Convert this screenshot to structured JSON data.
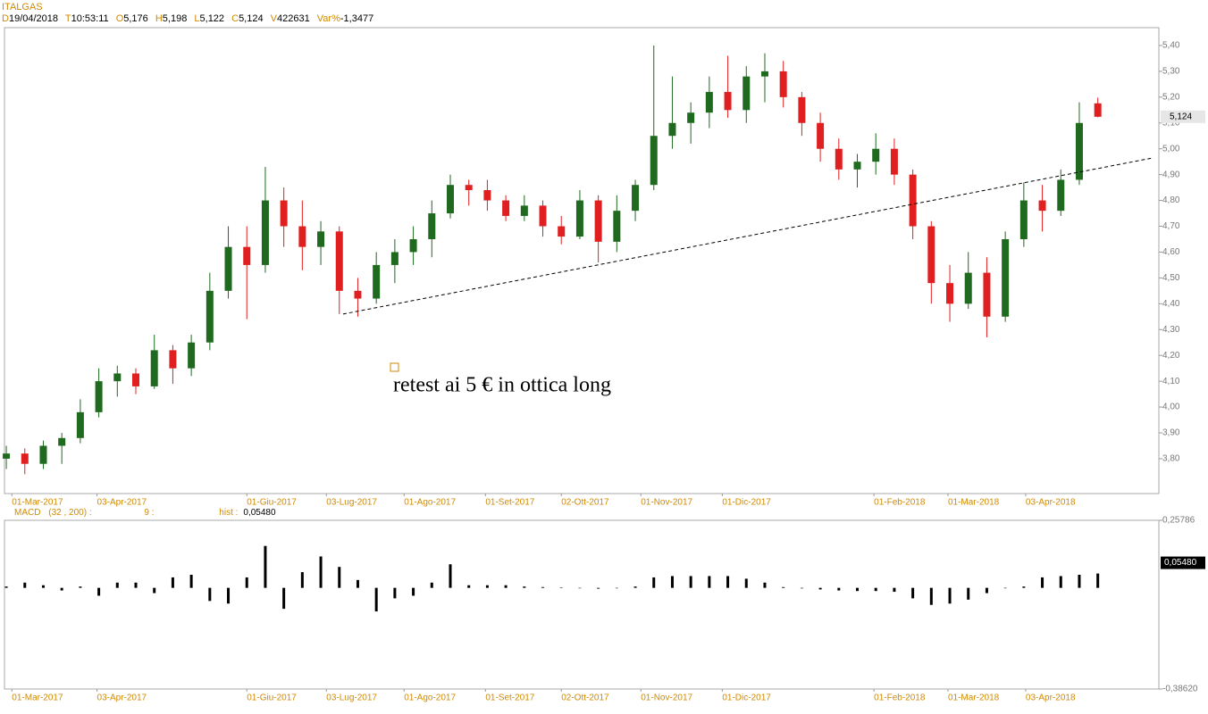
{
  "header": {
    "instrument": "ITALGAS",
    "quote": [
      {
        "key": "D",
        "value": "19/04/2018"
      },
      {
        "key": "T",
        "value": "10:53:11"
      },
      {
        "key": "O",
        "value": "5,176"
      },
      {
        "key": "H",
        "value": "5,198"
      },
      {
        "key": "L",
        "value": "5,122"
      },
      {
        "key": "C",
        "value": "5,124"
      },
      {
        "key": "V",
        "value": "422631"
      },
      {
        "key": "Var%",
        "value": "-1,3477"
      }
    ]
  },
  "chart_data": [
    {
      "type": "candlestick",
      "annotation": "retest ai 5 € in ottica long",
      "up_color": "#1f6a1f",
      "down_color": "#e02020",
      "open": [
        3.8,
        3.82,
        3.78,
        3.85,
        3.88,
        3.98,
        4.1,
        4.13,
        4.08,
        4.22,
        4.15,
        4.25,
        4.45,
        4.62,
        4.55,
        4.8,
        4.7,
        4.62,
        4.68,
        4.45,
        4.42,
        4.55,
        4.6,
        4.65,
        4.75,
        4.86,
        4.84,
        4.8,
        4.74,
        4.78,
        4.7,
        4.66,
        4.8,
        4.64,
        4.76,
        4.86,
        5.05,
        5.1,
        5.14,
        5.22,
        5.15,
        5.28,
        5.3,
        5.2,
        5.1,
        5.0,
        4.92,
        4.95,
        5.0,
        4.9,
        4.7,
        4.48,
        4.4,
        4.52,
        4.35,
        4.65,
        4.8,
        4.76,
        4.88,
        5.176
      ],
      "high": [
        3.85,
        3.84,
        3.87,
        3.9,
        4.03,
        4.15,
        4.16,
        4.15,
        4.28,
        4.24,
        4.28,
        4.52,
        4.7,
        4.7,
        4.93,
        4.85,
        4.8,
        4.72,
        4.7,
        4.5,
        4.6,
        4.65,
        4.7,
        4.8,
        4.9,
        4.88,
        4.88,
        4.82,
        4.82,
        4.8,
        4.74,
        4.84,
        4.82,
        4.82,
        4.88,
        5.4,
        5.28,
        5.18,
        5.28,
        5.36,
        5.32,
        5.37,
        5.34,
        5.22,
        5.14,
        5.04,
        4.98,
        5.06,
        5.04,
        4.92,
        4.72,
        4.55,
        4.6,
        4.58,
        4.68,
        4.87,
        4.86,
        4.92,
        5.18,
        5.198
      ],
      "low": [
        3.76,
        3.74,
        3.76,
        3.78,
        3.86,
        3.96,
        4.04,
        4.05,
        4.07,
        4.09,
        4.12,
        4.22,
        4.42,
        4.34,
        4.52,
        4.62,
        4.53,
        4.55,
        4.36,
        4.35,
        4.4,
        4.48,
        4.55,
        4.58,
        4.73,
        4.78,
        4.76,
        4.72,
        4.72,
        4.66,
        4.63,
        4.65,
        4.56,
        4.6,
        4.72,
        4.84,
        5.0,
        5.02,
        5.08,
        5.12,
        5.1,
        5.18,
        5.16,
        5.05,
        4.95,
        4.88,
        4.85,
        4.9,
        4.86,
        4.65,
        4.4,
        4.33,
        4.38,
        4.27,
        4.33,
        4.62,
        4.68,
        4.74,
        4.86,
        5.122
      ],
      "close": [
        3.82,
        3.78,
        3.85,
        3.88,
        3.98,
        4.1,
        4.13,
        4.08,
        4.22,
        4.15,
        4.25,
        4.45,
        4.62,
        4.55,
        4.8,
        4.7,
        4.62,
        4.68,
        4.45,
        4.42,
        4.55,
        4.6,
        4.65,
        4.75,
        4.86,
        4.84,
        4.8,
        4.74,
        4.78,
        4.7,
        4.66,
        4.8,
        4.64,
        4.76,
        4.86,
        5.05,
        5.1,
        5.14,
        5.22,
        5.15,
        5.28,
        5.3,
        5.2,
        5.1,
        5.0,
        4.92,
        4.95,
        5.0,
        4.9,
        4.7,
        4.48,
        4.4,
        4.52,
        4.35,
        4.65,
        4.8,
        4.76,
        4.88,
        5.1,
        5.124
      ],
      "xlim": [
        -0.1,
        62.3
      ],
      "ylim": [
        3.665,
        5.469
      ],
      "yticks": [
        {
          "value": 3.8,
          "label": "3,80"
        },
        {
          "value": 3.9,
          "label": "3,90"
        },
        {
          "value": 4.0,
          "label": "4,00"
        },
        {
          "value": 4.1,
          "label": "4,10"
        },
        {
          "value": 4.2,
          "label": "4,20"
        },
        {
          "value": 4.3,
          "label": "4,30"
        },
        {
          "value": 4.4,
          "label": "4,40"
        },
        {
          "value": 4.5,
          "label": "4,50"
        },
        {
          "value": 4.6,
          "label": "4,60"
        },
        {
          "value": 4.7,
          "label": "4,70"
        },
        {
          "value": 4.8,
          "label": "4,80"
        },
        {
          "value": 4.9,
          "label": "4,90"
        },
        {
          "value": 5.0,
          "label": "5,00"
        },
        {
          "value": 5.1,
          "label": "5,10"
        },
        {
          "value": 5.2,
          "label": "5,20"
        },
        {
          "value": 5.3,
          "label": "5,30"
        },
        {
          "value": 5.4,
          "label": "5,40"
        }
      ],
      "xticks": [
        {
          "value": 0.3,
          "label": "01-Mar-2017"
        },
        {
          "value": 4.9,
          "label": "03-Apr-2017"
        },
        {
          "value": 13.0,
          "label": "01-Giu-2017"
        },
        {
          "value": 17.3,
          "label": "03-Lug-2017"
        },
        {
          "value": 21.5,
          "label": "01-Ago-2017"
        },
        {
          "value": 25.9,
          "label": "01-Set-2017"
        },
        {
          "value": 30.0,
          "label": "02-Ott-2017"
        },
        {
          "value": 34.3,
          "label": "01-Nov-2017"
        },
        {
          "value": 38.7,
          "label": "01-Dic-2017"
        },
        {
          "value": 46.9,
          "label": "01-Feb-2018"
        },
        {
          "value": 50.9,
          "label": "01-Mar-2018"
        },
        {
          "value": 55.1,
          "label": "03-Apr-2018"
        }
      ],
      "trendline": {
        "x": [
          18.2,
          62.0
        ],
        "y": [
          4.36,
          4.965
        ]
      },
      "last_label": {
        "value": 5.124,
        "label": "5,124"
      }
    },
    {
      "type": "bar",
      "title": "MACD",
      "params": "(32 , 200) :",
      "signal": "9 :",
      "hist_key": "hist :",
      "color": "#000000",
      "values": [
        0.005,
        0.02,
        0.01,
        -0.01,
        0.005,
        -0.03,
        0.02,
        0.02,
        -0.02,
        0.04,
        0.05,
        -0.05,
        -0.06,
        0.04,
        0.16,
        -0.08,
        0.06,
        0.12,
        0.08,
        0.03,
        -0.09,
        -0.04,
        -0.03,
        0.02,
        0.09,
        0.01,
        0.01,
        0.01,
        0.005,
        0.003,
        0.001,
        0.0,
        -0.003,
        0.0,
        0.005,
        0.04,
        0.045,
        0.045,
        0.045,
        0.045,
        0.035,
        0.02,
        0.003,
        -0.002,
        -0.006,
        -0.01,
        -0.012,
        -0.012,
        -0.015,
        -0.04,
        -0.065,
        -0.06,
        -0.045,
        -0.02,
        0.0,
        0.005,
        0.04,
        0.045,
        0.05,
        0.0548
      ],
      "ylim": [
        -0.3862,
        0.25786
      ],
      "yticks": [
        {
          "value": 0.25786,
          "label": "0,25786"
        },
        {
          "value": -0.3862,
          "label": "-0,38620"
        }
      ],
      "last_label": {
        "value": 0.0548,
        "label": "0,05480"
      }
    }
  ]
}
